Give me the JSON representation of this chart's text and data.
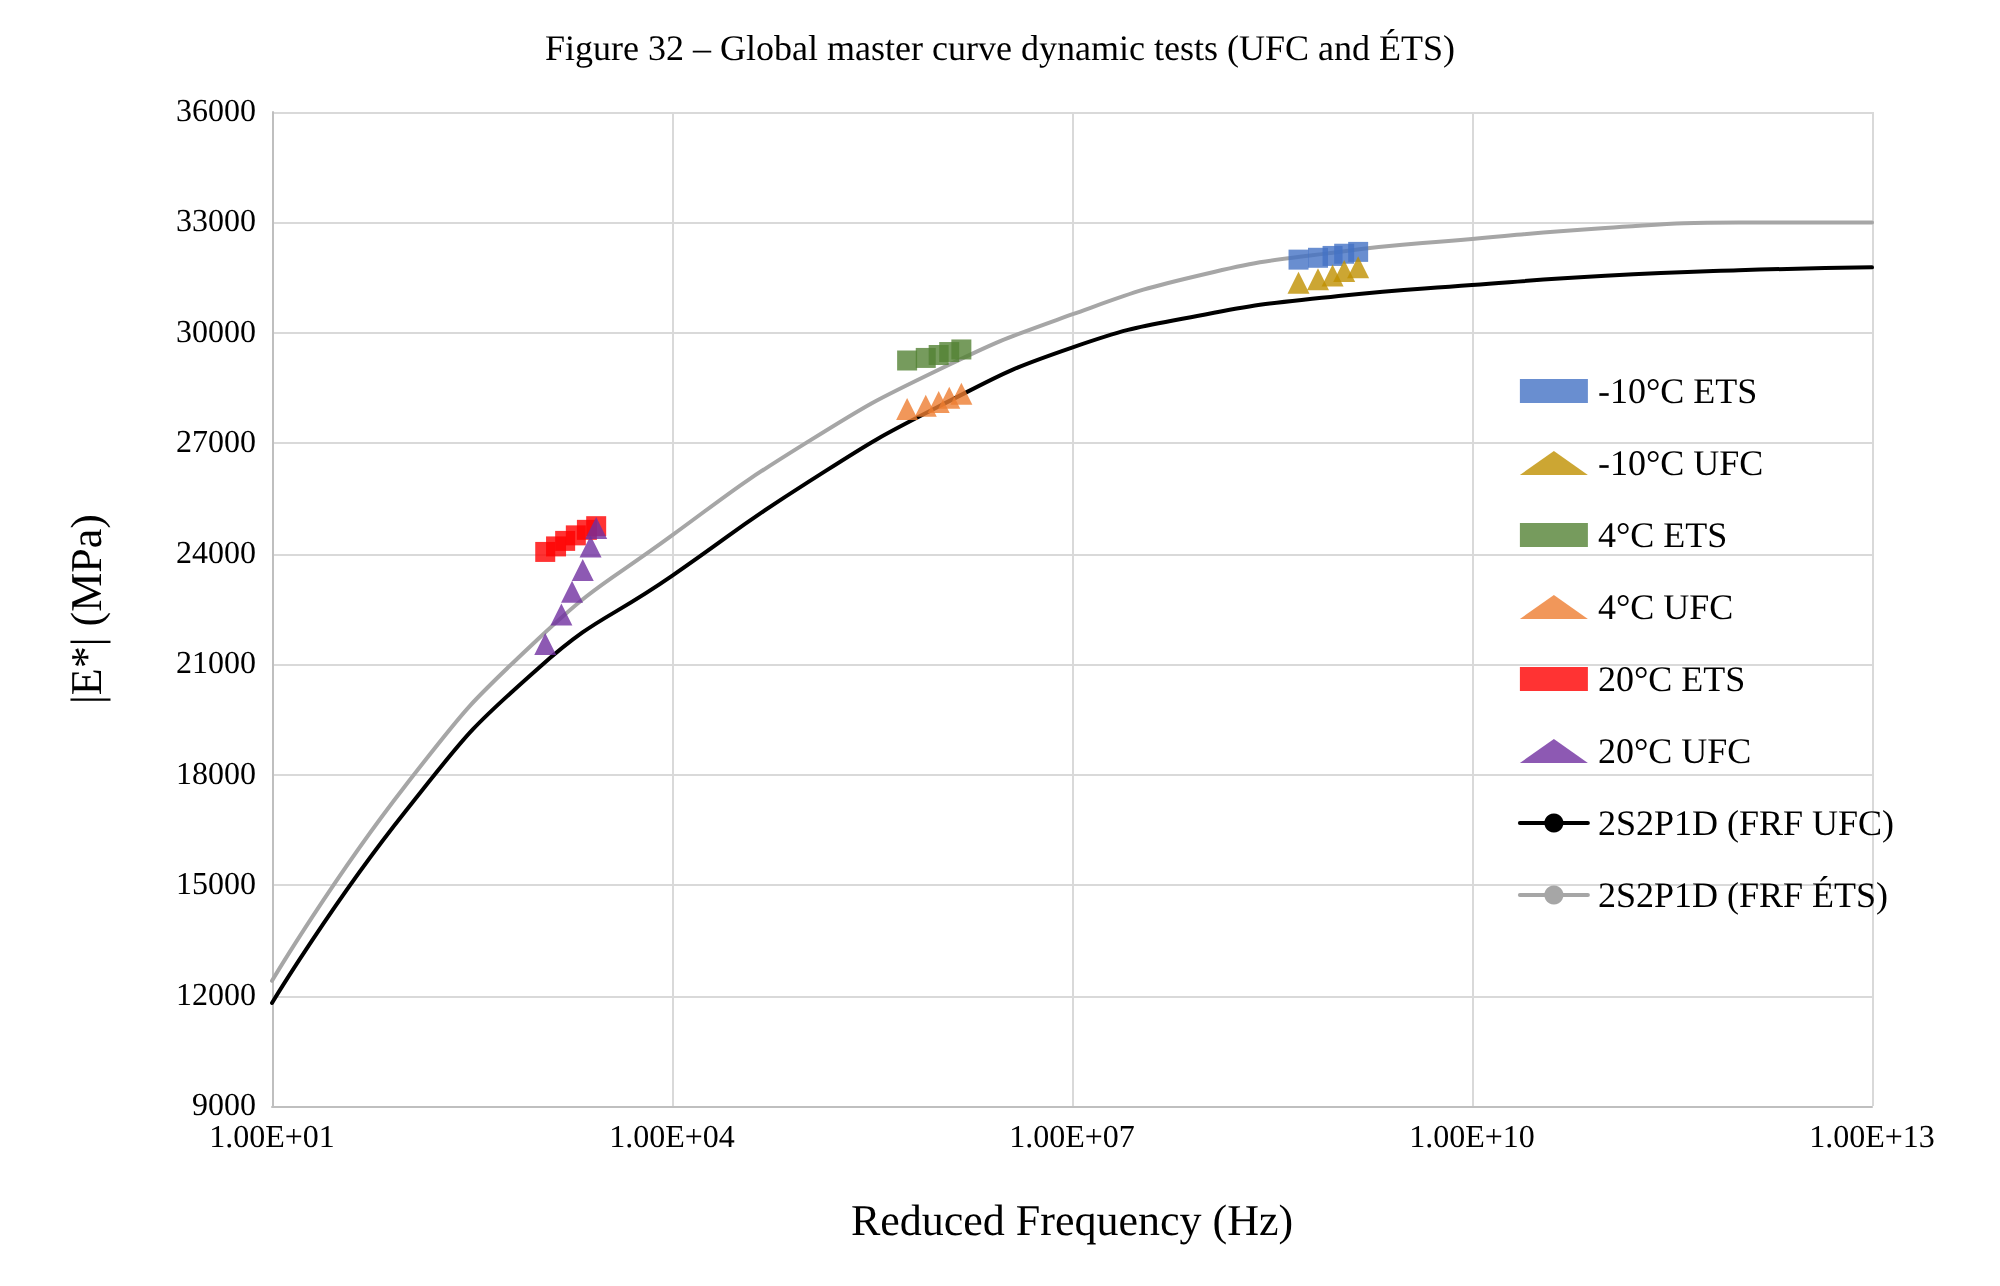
{
  "chart_data": {
    "type": "scatter",
    "title": "Figure 32 – Global master curve dynamic tests (UFC and ÉTS)",
    "xlabel": "Reduced Frequency (Hz)",
    "ylabel": "|E*| (MPa)",
    "log": "x",
    "grid": true,
    "legend": "right",
    "xlim": [
      10,
      10000000000000
    ],
    "xticks": [
      {
        "value": 10,
        "label": "1.00E+01"
      },
      {
        "value": 10000,
        "label": "1.00E+04"
      },
      {
        "value": 10000000,
        "label": "1.00E+07"
      },
      {
        "value": 10000000000,
        "label": "1.00E+10"
      },
      {
        "value": 10000000000000,
        "label": "1.00E+13"
      }
    ],
    "ylim": [
      9000,
      36000
    ],
    "yticks": [
      9000,
      12000,
      15000,
      18000,
      21000,
      24000,
      27000,
      30000,
      33000,
      36000
    ],
    "series": [
      {
        "name": "-10°C ETS",
        "marker": "square",
        "color": "#4472c4",
        "x": [
          500000000,
          700000000,
          900000000,
          1100000000,
          1400000000
        ],
        "values": [
          31990,
          32040,
          32090,
          32150,
          32200
        ]
      },
      {
        "name": "-10°C UFC",
        "marker": "triangle",
        "color": "#bf9000",
        "x": [
          500000000,
          700000000,
          900000000,
          1100000000,
          1400000000
        ],
        "values": [
          31360,
          31460,
          31560,
          31680,
          31780
        ]
      },
      {
        "name": "4°C ETS",
        "marker": "square",
        "color": "#548235",
        "x": [
          580000,
          800000,
          1000000,
          1200000,
          1480000
        ],
        "values": [
          29250,
          29320,
          29400,
          29480,
          29550
        ]
      },
      {
        "name": "4°C UFC",
        "marker": "triangle",
        "color": "#ed7d31",
        "x": [
          580000,
          800000,
          1000000,
          1200000,
          1480000
        ],
        "values": [
          27930,
          28020,
          28120,
          28240,
          28350
        ]
      },
      {
        "name": "20°C ETS",
        "marker": "square",
        "color": "#ff0000",
        "x": [
          1120,
          1350,
          1580,
          1900,
          2300,
          2700
        ],
        "values": [
          24050,
          24200,
          24350,
          24500,
          24650,
          24750
        ]
      },
      {
        "name": "20°C UFC",
        "marker": "triangle",
        "color": "#7030a0",
        "x": [
          1120,
          1480,
          1780,
          2140,
          2450,
          2700
        ],
        "values": [
          21550,
          22350,
          22970,
          23560,
          24200,
          24700
        ]
      },
      {
        "name": "2S2P1D (FRF UFC)",
        "type": "line",
        "marker": "none",
        "color": "#000000",
        "x": [
          10,
          100,
          1000,
          10000,
          100000,
          1000000,
          10000000,
          100000000,
          1000000000,
          10000000000,
          100000000000,
          1000000000000,
          10000000000000
        ],
        "values": [
          11800,
          17000,
          20900,
          23400,
          25900,
          28000,
          29600,
          30500,
          31000,
          31300,
          31550,
          31700,
          31780
        ]
      },
      {
        "name": "2S2P1D (FRF ÉTS)",
        "type": "line",
        "marker": "none",
        "color": "#a6a6a6",
        "x": [
          10,
          100,
          1000,
          10000,
          100000,
          1000000,
          10000000,
          100000000,
          1000000000,
          10000000000,
          100000000000,
          1000000000000,
          10000000000000
        ],
        "values": [
          12400,
          17700,
          21700,
          24500,
          27000,
          29000,
          30500,
          31600,
          32200,
          32550,
          32850,
          33000,
          33000
        ]
      }
    ]
  }
}
